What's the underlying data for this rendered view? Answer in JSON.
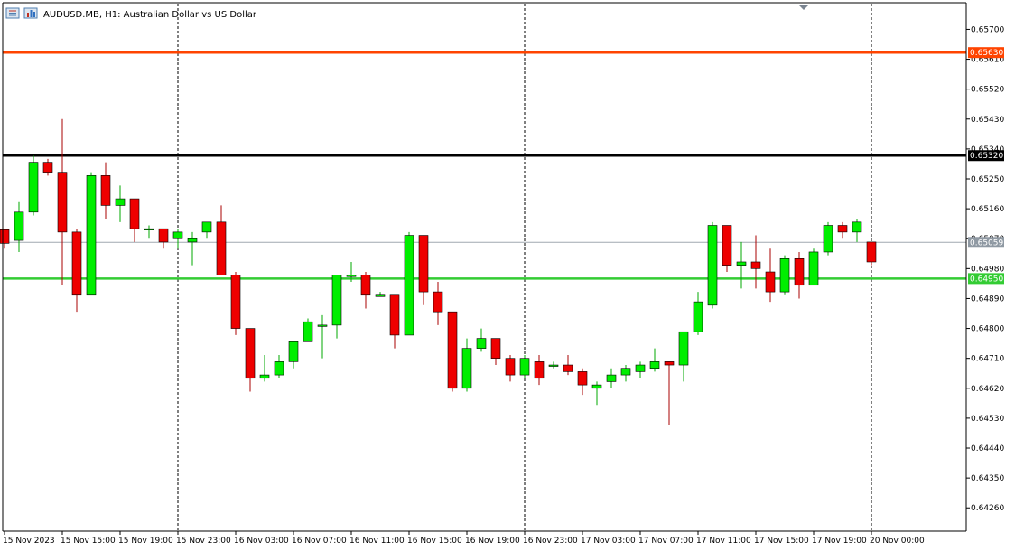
{
  "header": {
    "symbol_text": "AUDUSD.MB, H1:  Australian Dollar vs US Dollar",
    "icons": [
      "list-icon",
      "chart-bars-icon"
    ]
  },
  "colors": {
    "bull": "#00ee00",
    "bear": "#ee0000",
    "wick_bull": "#00aa00",
    "wick_bear": "#aa0000",
    "orange_line": "#ff4400",
    "black_line": "#000000",
    "green_line": "#33cc33",
    "price_line": "#a0a8b0"
  },
  "chart_data": {
    "type": "candlestick",
    "title": "AUDUSD.MB, H1:  Australian Dollar vs US Dollar",
    "ylim": [
      0.6419,
      0.6578
    ],
    "y_ticks": [
      "0.65700",
      "0.65610",
      "0.65520",
      "0.65430",
      "0.65340",
      "0.65250",
      "0.65160",
      "0.65070",
      "0.64980",
      "0.64890",
      "0.64800",
      "0.64710",
      "0.64620",
      "0.64530",
      "0.64440",
      "0.64350",
      "0.64260"
    ],
    "x_labels": [
      "15 Nov 2023",
      "15 Nov 15:00",
      "15 Nov 19:00",
      "15 Nov 23:00",
      "16 Nov 03:00",
      "16 Nov 07:00",
      "16 Nov 11:00",
      "16 Nov 15:00",
      "16 Nov 19:00",
      "16 Nov 23:00",
      "17 Nov 03:00",
      "17 Nov 07:00",
      "17 Nov 11:00",
      "17 Nov 15:00",
      "17 Nov 19:00",
      "20 Nov 00:00"
    ],
    "period_separators_after_label": [
      "15 Nov 23:00",
      "16 Nov 23:00",
      "20 Nov 00:00"
    ],
    "horizontal_lines": [
      {
        "price": 0.6563,
        "label": "0.65630",
        "color": "orange"
      },
      {
        "price": 0.6532,
        "label": "0.65320",
        "color": "black"
      },
      {
        "price": 0.6495,
        "label": "0.64950",
        "color": "green"
      }
    ],
    "current_price": {
      "price": 0.65059,
      "label": "0.65059"
    },
    "candles": [
      {
        "o": 0.65097,
        "h": 0.65097,
        "l": 0.6504,
        "c": 0.65056
      },
      {
        "o": 0.65065,
        "h": 0.6518,
        "l": 0.6503,
        "c": 0.6515
      },
      {
        "o": 0.6515,
        "h": 0.6532,
        "l": 0.6514,
        "c": 0.653
      },
      {
        "o": 0.653,
        "h": 0.6531,
        "l": 0.6526,
        "c": 0.6527
      },
      {
        "o": 0.6527,
        "h": 0.6543,
        "l": 0.6493,
        "c": 0.6509
      },
      {
        "o": 0.6509,
        "h": 0.651,
        "l": 0.6485,
        "c": 0.649
      },
      {
        "o": 0.649,
        "h": 0.6527,
        "l": 0.649,
        "c": 0.6526
      },
      {
        "o": 0.6526,
        "h": 0.653,
        "l": 0.6513,
        "c": 0.6517
      },
      {
        "o": 0.6517,
        "h": 0.6523,
        "l": 0.6512,
        "c": 0.6519
      },
      {
        "o": 0.6519,
        "h": 0.6519,
        "l": 0.6506,
        "c": 0.651
      },
      {
        "o": 0.651,
        "h": 0.6511,
        "l": 0.6507,
        "c": 0.651
      },
      {
        "o": 0.651,
        "h": 0.651,
        "l": 0.6504,
        "c": 0.6506
      },
      {
        "o": 0.6507,
        "h": 0.651,
        "l": 0.6504,
        "c": 0.6509
      },
      {
        "o": 0.6506,
        "h": 0.6509,
        "l": 0.6499,
        "c": 0.6507
      },
      {
        "o": 0.6509,
        "h": 0.6512,
        "l": 0.6507,
        "c": 0.6512
      },
      {
        "o": 0.6512,
        "h": 0.6517,
        "l": 0.6496,
        "c": 0.6496
      },
      {
        "o": 0.6496,
        "h": 0.6497,
        "l": 0.6478,
        "c": 0.648
      },
      {
        "o": 0.648,
        "h": 0.648,
        "l": 0.6461,
        "c": 0.6465
      },
      {
        "o": 0.6465,
        "h": 0.6472,
        "l": 0.6464,
        "c": 0.6466
      },
      {
        "o": 0.6466,
        "h": 0.6472,
        "l": 0.6465,
        "c": 0.647
      },
      {
        "o": 0.647,
        "h": 0.6476,
        "l": 0.6468,
        "c": 0.6476
      },
      {
        "o": 0.6476,
        "h": 0.6483,
        "l": 0.6476,
        "c": 0.6482
      },
      {
        "o": 0.6481,
        "h": 0.6484,
        "l": 0.6471,
        "c": 0.6481
      },
      {
        "o": 0.6481,
        "h": 0.6496,
        "l": 0.6477,
        "c": 0.6496
      },
      {
        "o": 0.6496,
        "h": 0.65,
        "l": 0.6494,
        "c": 0.6496
      },
      {
        "o": 0.6496,
        "h": 0.6497,
        "l": 0.6486,
        "c": 0.649
      },
      {
        "o": 0.649,
        "h": 0.6491,
        "l": 0.649,
        "c": 0.649
      },
      {
        "o": 0.649,
        "h": 0.649,
        "l": 0.6474,
        "c": 0.6478
      },
      {
        "o": 0.6478,
        "h": 0.6509,
        "l": 0.6478,
        "c": 0.6508
      },
      {
        "o": 0.6508,
        "h": 0.6508,
        "l": 0.6487,
        "c": 0.6491
      },
      {
        "o": 0.6491,
        "h": 0.6494,
        "l": 0.6481,
        "c": 0.6485
      },
      {
        "o": 0.6485,
        "h": 0.6485,
        "l": 0.6461,
        "c": 0.6462
      },
      {
        "o": 0.6462,
        "h": 0.6477,
        "l": 0.6461,
        "c": 0.6474
      },
      {
        "o": 0.6474,
        "h": 0.648,
        "l": 0.6473,
        "c": 0.6477
      },
      {
        "o": 0.6477,
        "h": 0.6477,
        "l": 0.6469,
        "c": 0.6471
      },
      {
        "o": 0.6471,
        "h": 0.6472,
        "l": 0.6464,
        "c": 0.6466
      },
      {
        "o": 0.6466,
        "h": 0.6472,
        "l": 0.6465,
        "c": 0.6471
      },
      {
        "o": 0.647,
        "h": 0.6472,
        "l": 0.6463,
        "c": 0.6465
      },
      {
        "o": 0.6469,
        "h": 0.647,
        "l": 0.6468,
        "c": 0.6469
      },
      {
        "o": 0.6469,
        "h": 0.6472,
        "l": 0.6466,
        "c": 0.6467
      },
      {
        "o": 0.6467,
        "h": 0.6468,
        "l": 0.646,
        "c": 0.6463
      },
      {
        "o": 0.6462,
        "h": 0.6464,
        "l": 0.6457,
        "c": 0.6463
      },
      {
        "o": 0.6464,
        "h": 0.6468,
        "l": 0.6462,
        "c": 0.6466
      },
      {
        "o": 0.6466,
        "h": 0.6469,
        "l": 0.6464,
        "c": 0.6468
      },
      {
        "o": 0.6467,
        "h": 0.647,
        "l": 0.6465,
        "c": 0.6469
      },
      {
        "o": 0.6468,
        "h": 0.6474,
        "l": 0.6467,
        "c": 0.647
      },
      {
        "o": 0.647,
        "h": 0.647,
        "l": 0.6451,
        "c": 0.6469
      },
      {
        "o": 0.6469,
        "h": 0.6479,
        "l": 0.6464,
        "c": 0.6479
      },
      {
        "o": 0.6479,
        "h": 0.6491,
        "l": 0.6478,
        "c": 0.6488
      },
      {
        "o": 0.6487,
        "h": 0.6512,
        "l": 0.6486,
        "c": 0.6511
      },
      {
        "o": 0.6511,
        "h": 0.6511,
        "l": 0.6497,
        "c": 0.6499
      },
      {
        "o": 0.6499,
        "h": 0.6506,
        "l": 0.6492,
        "c": 0.65
      },
      {
        "o": 0.65,
        "h": 0.6508,
        "l": 0.6492,
        "c": 0.6498
      },
      {
        "o": 0.6497,
        "h": 0.6504,
        "l": 0.6488,
        "c": 0.6491
      },
      {
        "o": 0.6491,
        "h": 0.6502,
        "l": 0.649,
        "c": 0.6501
      },
      {
        "o": 0.6501,
        "h": 0.6503,
        "l": 0.6489,
        "c": 0.6493
      },
      {
        "o": 0.6493,
        "h": 0.6504,
        "l": 0.6493,
        "c": 0.6503
      },
      {
        "o": 0.6503,
        "h": 0.6512,
        "l": 0.6502,
        "c": 0.6511
      },
      {
        "o": 0.6511,
        "h": 0.6512,
        "l": 0.6507,
        "c": 0.6509
      },
      {
        "o": 0.6509,
        "h": 0.6513,
        "l": 0.6506,
        "c": 0.6512
      },
      {
        "o": 0.6506,
        "h": 0.6506,
        "l": 0.6499,
        "c": 0.65
      }
    ]
  }
}
